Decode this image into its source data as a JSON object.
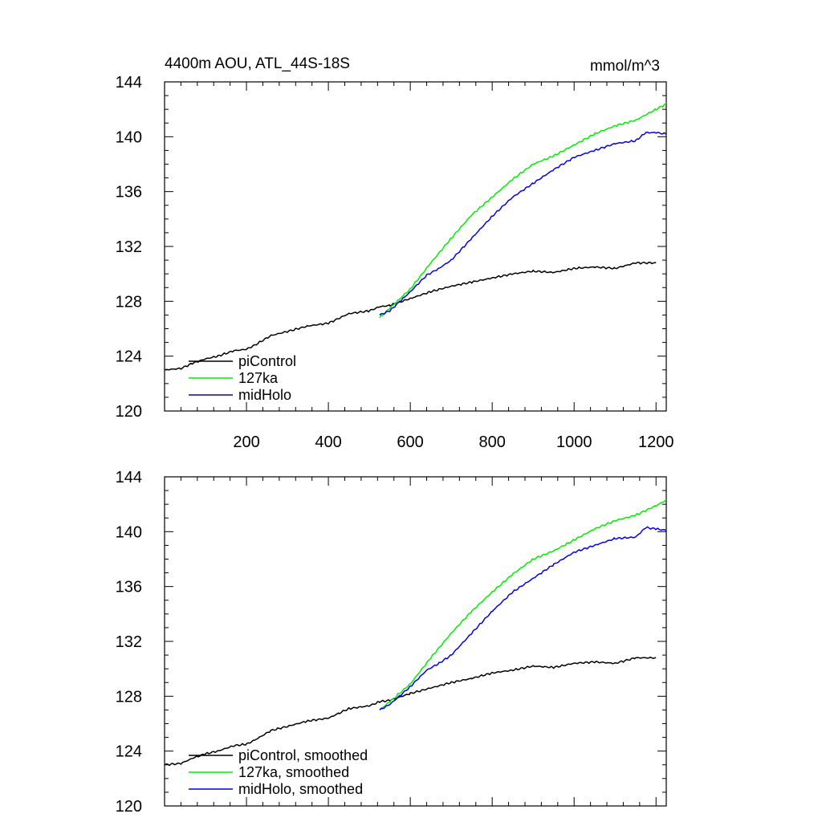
{
  "chart_data": [
    {
      "type": "line",
      "title": "4400m AOU, ATL_44S-18S",
      "units": "mmol/m^3",
      "xlim": [
        0,
        1225
      ],
      "ylim": [
        120,
        144
      ],
      "xticks": [
        200,
        400,
        600,
        800,
        1000,
        1200
      ],
      "xtick_labels": [
        "200",
        "400",
        "600",
        "800",
        "1000",
        "1200"
      ],
      "yticks": [
        120,
        124,
        128,
        132,
        136,
        140,
        144
      ],
      "ytick_labels": [
        "120",
        "124",
        "128",
        "132",
        "136",
        "140",
        "144"
      ],
      "grid": false,
      "legend_position": "bottom-left",
      "series": [
        {
          "name": "piControl",
          "color": "#000000",
          "x": [
            0,
            40,
            70,
            100,
            130,
            170,
            200,
            220,
            260,
            300,
            350,
            400,
            450,
            500,
            525,
            550,
            600,
            650,
            700,
            750,
            800,
            850,
            900,
            950,
            1000,
            1050,
            1100,
            1150,
            1200
          ],
          "y": [
            123.0,
            123.1,
            123.5,
            123.8,
            124.0,
            124.4,
            124.5,
            124.8,
            125.5,
            125.8,
            126.2,
            126.4,
            127.1,
            127.3,
            127.6,
            127.7,
            128.2,
            128.7,
            129.1,
            129.4,
            129.7,
            130.0,
            130.2,
            130.1,
            130.4,
            130.5,
            130.4,
            130.8,
            130.8
          ]
        },
        {
          "name": "127ka",
          "color": "#00ee00",
          "x": [
            525,
            550,
            600,
            650,
            700,
            750,
            800,
            850,
            900,
            950,
            1000,
            1050,
            1100,
            1150,
            1200,
            1225
          ],
          "y": [
            126.8,
            127.5,
            128.9,
            130.8,
            132.6,
            134.3,
            135.6,
            136.9,
            138.0,
            138.6,
            139.4,
            140.2,
            140.8,
            141.2,
            142.0,
            142.4
          ]
        },
        {
          "name": "midHolo",
          "color": "#0000ee",
          "x": [
            525,
            550,
            600,
            640,
            670,
            700,
            750,
            800,
            850,
            900,
            950,
            1000,
            1050,
            1100,
            1150,
            1175,
            1200,
            1225
          ],
          "y": [
            127.0,
            127.3,
            128.7,
            129.9,
            130.4,
            131.0,
            132.6,
            134.2,
            135.6,
            136.6,
            137.6,
            138.5,
            139.0,
            139.5,
            139.7,
            140.3,
            140.3,
            140.2
          ]
        }
      ]
    },
    {
      "type": "line",
      "title": "",
      "xlim": [
        0,
        1225
      ],
      "ylim": [
        120,
        144
      ],
      "xticks": [
        200,
        400,
        600,
        800,
        1000,
        1200
      ],
      "yticks": [
        120,
        124,
        128,
        132,
        136,
        140,
        144
      ],
      "ytick_labels": [
        "120",
        "124",
        "128",
        "132",
        "136",
        "140",
        "144"
      ],
      "grid": false,
      "legend_position": "bottom-left",
      "series": [
        {
          "name": "piControl, smoothed",
          "color": "#000000",
          "x": [
            0,
            40,
            70,
            100,
            130,
            170,
            200,
            220,
            260,
            300,
            350,
            400,
            450,
            500,
            525,
            550,
            600,
            650,
            700,
            750,
            800,
            850,
            900,
            950,
            1000,
            1050,
            1100,
            1150,
            1200
          ],
          "y": [
            123.0,
            123.1,
            123.5,
            123.8,
            124.0,
            124.4,
            124.5,
            124.8,
            125.5,
            125.8,
            126.2,
            126.4,
            127.1,
            127.3,
            127.6,
            127.7,
            128.2,
            128.6,
            129.0,
            129.3,
            129.7,
            129.9,
            130.2,
            130.1,
            130.4,
            130.5,
            130.4,
            130.8,
            130.8
          ]
        },
        {
          "name": "127ka, smoothed",
          "color": "#00ee00",
          "x": [
            525,
            550,
            600,
            650,
            700,
            750,
            800,
            850,
            900,
            950,
            1000,
            1050,
            1100,
            1150,
            1200,
            1225
          ],
          "y": [
            127.0,
            127.6,
            128.9,
            130.8,
            132.6,
            134.2,
            135.6,
            136.9,
            138.0,
            138.6,
            139.4,
            140.2,
            140.8,
            141.2,
            141.9,
            142.3
          ]
        },
        {
          "name": "midHolo, smoothed",
          "color": "#0000ee",
          "x": [
            525,
            550,
            600,
            640,
            670,
            700,
            750,
            800,
            850,
            900,
            950,
            1000,
            1050,
            1100,
            1150,
            1175,
            1200,
            1225
          ],
          "y": [
            127.0,
            127.4,
            128.7,
            129.9,
            130.4,
            131.0,
            132.6,
            134.2,
            135.6,
            136.6,
            137.6,
            138.5,
            139.0,
            139.5,
            139.6,
            140.3,
            140.2,
            140.1
          ]
        }
      ]
    }
  ]
}
